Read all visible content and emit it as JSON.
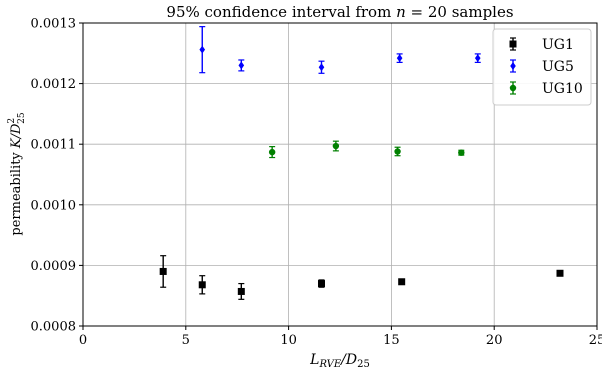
{
  "chart_data": {
    "type": "scatter",
    "title": "95% confidence interval from n = 20 samples",
    "title_parts": {
      "prefix": "95% confidence interval from ",
      "var": "n",
      "eq": " = 20 samples"
    },
    "xlabel": "L_RVE/D_25",
    "xlabel_parts": {
      "main": "L",
      "sub1": "RVE",
      "slash": "/D",
      "sub2": "25"
    },
    "ylabel": "permeability K/D_25^2",
    "ylabel_parts": {
      "main": "permeability ",
      "var": "K/D",
      "sup": "2",
      "sub": "25"
    },
    "xlim": [
      0,
      25
    ],
    "ylim": [
      0.0008,
      0.0013
    ],
    "x_ticks": [
      0,
      5,
      10,
      15,
      20,
      25
    ],
    "y_ticks": [
      0.0008,
      0.0009,
      0.001,
      0.0011,
      0.0012,
      0.0013
    ],
    "x_tick_labels": [
      "0",
      "5",
      "10",
      "15",
      "20",
      "25"
    ],
    "y_tick_labels": [
      "0.0008",
      "0.0009",
      "0.0010",
      "0.0011",
      "0.0012",
      "0.0013"
    ],
    "grid": true,
    "legend_position": "top-right",
    "series": [
      {
        "name": "UG1",
        "color": "#000000",
        "marker": "square",
        "x": [
          3.9,
          5.8,
          7.7,
          11.6,
          15.5,
          23.2
        ],
        "y": [
          0.00089,
          0.000868,
          0.000857,
          0.00087,
          0.000873,
          0.000887
        ],
        "err": [
          2.6e-05,
          1.5e-05,
          1.3e-05,
          6e-06,
          3e-06,
          3e-06
        ]
      },
      {
        "name": "UG5",
        "color": "#0000ff",
        "marker": "diamond",
        "x": [
          5.8,
          7.7,
          11.6,
          15.4,
          19.2
        ],
        "y": [
          0.001256,
          0.00123,
          0.001227,
          0.001242,
          0.001242
        ],
        "err": [
          3.8e-05,
          9e-06,
          1e-05,
          7e-06,
          7e-06
        ]
      },
      {
        "name": "UG10",
        "color": "#008000",
        "marker": "circle",
        "x": [
          9.2,
          12.3,
          15.3,
          18.4
        ],
        "y": [
          0.001087,
          0.001097,
          0.001088,
          0.001086
        ],
        "err": [
          9e-06,
          8e-06,
          7e-06,
          4e-06
        ]
      }
    ]
  }
}
